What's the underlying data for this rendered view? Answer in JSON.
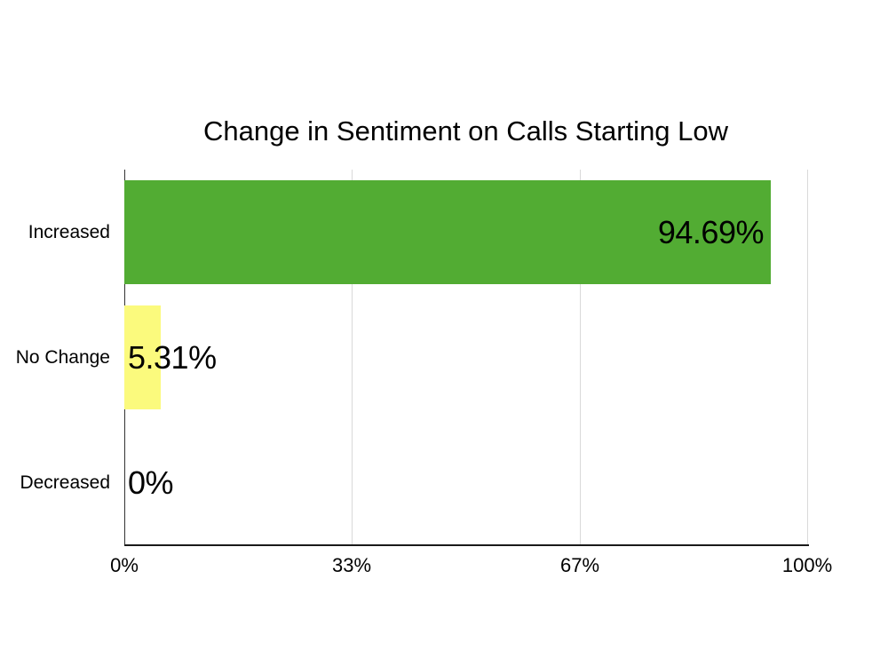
{
  "page": {
    "background": "#ffffff"
  },
  "chart_data": {
    "type": "bar",
    "orientation": "horizontal",
    "title": "Change in Sentiment on Calls Starting Low",
    "categories": [
      "Increased",
      "No Change",
      "Decreased"
    ],
    "values": [
      94.69,
      5.31,
      0
    ],
    "value_labels": [
      "94.69%",
      "5.31%",
      "0%"
    ],
    "bar_colors": [
      "#52ac33",
      "#fbfa7d",
      null
    ],
    "xlabel": "",
    "ylabel": "",
    "xlim": [
      0,
      100
    ],
    "x_ticks": [
      {
        "label": "0%",
        "value": 0
      },
      {
        "label": "33%",
        "value": 33.33
      },
      {
        "label": "67%",
        "value": 66.67
      },
      {
        "label": "100%",
        "value": 100
      }
    ],
    "grid": true,
    "legend_position": "none",
    "colors": {
      "grid_line": "#d9d9d9",
      "axis_line": "#333333",
      "baseline": "#1a1a1a",
      "text": "#000000"
    }
  }
}
